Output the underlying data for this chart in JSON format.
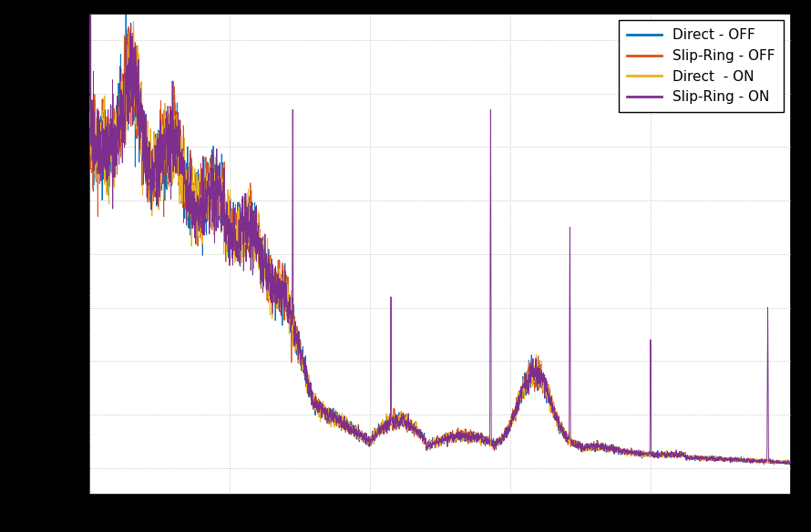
{
  "legend_labels": [
    "Direct - OFF",
    "Slip-Ring - OFF",
    "Direct  - ON",
    "Slip-Ring - ON"
  ],
  "legend_colors": [
    "#0072BD",
    "#D95319",
    "#EDB120",
    "#7E2F8E"
  ],
  "figsize": [
    8.9,
    5.84
  ],
  "dpi": 100,
  "background_color": "#FFFFFF",
  "outer_background": "#000000",
  "grid_color": "#B0B0B0",
  "seed": 42,
  "legend_fontsize": 11
}
